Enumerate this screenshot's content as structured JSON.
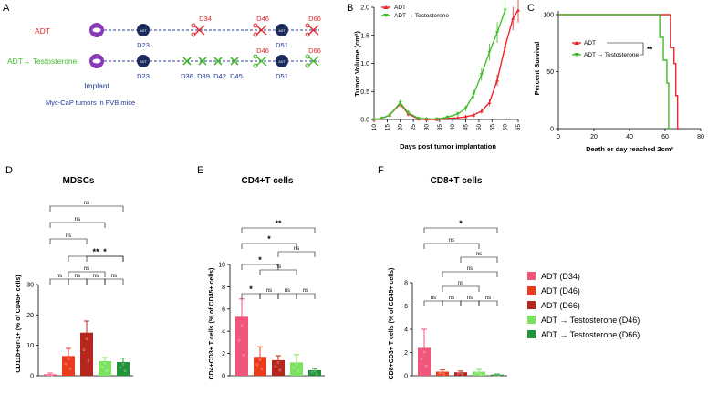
{
  "colors": {
    "adt_red": "#e8262c",
    "adt_testo_green": "#44bb2c",
    "timeline_line": "#2b3f8f",
    "mouse_purple": "#8a3ab9",
    "dot_navy": "#1c2b5e",
    "d34_bar": "#f0567a",
    "d46_bar": "#ec3a1d",
    "d66_bar": "#b5271c",
    "td46_bar": "#7ae25f",
    "td66_bar": "#1f9438",
    "implant_blue": "#1f3a93"
  },
  "panelA": {
    "letter": "A",
    "row1": {
      "label": "ADT",
      "dot1": "ADT",
      "dot1_day": "D23",
      "scissor1": "D34",
      "scissor2": "D46",
      "dot2_day": "D51",
      "scissor3": "D66"
    },
    "row2": {
      "label": "ADT→ Testosterone",
      "dot1": "ADT",
      "dot1_day": "D23",
      "x_days": [
        "D36",
        "D39",
        "D42",
        "D45"
      ],
      "scissor2": "D46",
      "dot2_day": "D51",
      "scissor3": "D66"
    },
    "implant": "Implant",
    "footnote": "Myc-CaP tumors in FVB mice"
  },
  "chart_data": [
    {
      "panel": "B",
      "type": "line",
      "title": "",
      "xlabel": "Days post tumor implantation",
      "ylabel": "Tumor Volume (cm³)",
      "xlim": [
        10,
        65
      ],
      "ylim": [
        0,
        2.0
      ],
      "xticks": [
        "10",
        "15",
        "20",
        "25",
        "30",
        "35",
        "40",
        "45",
        "50",
        "55",
        "60",
        "65"
      ],
      "yticks": [
        "0.0",
        "0.5",
        "1.0",
        "1.5",
        "2.0"
      ],
      "series": [
        {
          "name": "ADT",
          "x": [
            10,
            13,
            16,
            20,
            23,
            27,
            30,
            34,
            38,
            42,
            45,
            48,
            51,
            54,
            57,
            60,
            63,
            65
          ],
          "y": [
            0.0,
            0.02,
            0.08,
            0.28,
            0.1,
            0.01,
            0.0,
            0.0,
            0.02,
            0.03,
            0.05,
            0.08,
            0.15,
            0.3,
            0.7,
            1.3,
            1.8,
            1.95
          ]
        },
        {
          "name": "ADT → Testosterone",
          "x": [
            10,
            13,
            16,
            20,
            23,
            27,
            30,
            34,
            38,
            42,
            45,
            48,
            51,
            54,
            57,
            60
          ],
          "y": [
            0.0,
            0.02,
            0.08,
            0.3,
            0.12,
            0.02,
            0.01,
            0.01,
            0.04,
            0.1,
            0.2,
            0.45,
            0.8,
            1.2,
            1.55,
            1.95
          ]
        }
      ]
    },
    {
      "panel": "C",
      "type": "line",
      "title": "",
      "xlabel": "Death or day reached 2cm³",
      "ylabel": "Percent Survival",
      "xlim": [
        0,
        80
      ],
      "ylim": [
        0,
        100
      ],
      "xticks": [
        "0",
        "20",
        "40",
        "60",
        "80"
      ],
      "yticks": [
        "0",
        "50",
        "100"
      ],
      "significance": "**",
      "series": [
        {
          "name": "ADT",
          "x": [
            0,
            63,
            63,
            65,
            65,
            66,
            66,
            67,
            67,
            68
          ],
          "y": [
            100,
            100,
            71,
            71,
            57,
            57,
            29,
            29,
            0,
            0
          ]
        },
        {
          "name": "ADT → Testosterone",
          "x": [
            0,
            57,
            57,
            59,
            59,
            61,
            61,
            62,
            62,
            63
          ],
          "y": [
            100,
            100,
            80,
            80,
            60,
            60,
            40,
            40,
            0,
            0
          ]
        }
      ]
    },
    {
      "panel": "D",
      "type": "bar",
      "title": "MDSCs",
      "ylabel": "CD11b+Gr-1+ (% of CD45+ cells)",
      "ylim": [
        0,
        30
      ],
      "yticks": [
        "0",
        "10",
        "20",
        "30"
      ],
      "categories": [
        "ADT (D34)",
        "ADT (D46)",
        "ADT (D66)",
        "ADT → Testosterone (D46)",
        "ADT → Testosterone (D66)"
      ],
      "values": [
        0.5,
        6.5,
        14.2,
        4.8,
        4.5
      ],
      "errors": [
        0.4,
        2.5,
        3.8,
        1.2,
        1.3
      ],
      "significance": [
        {
          "pair": [
            0,
            4
          ],
          "label": "ns"
        },
        {
          "pair": [
            0,
            3
          ],
          "label": "ns"
        },
        {
          "pair": [
            0,
            2
          ],
          "label": "ns"
        },
        {
          "pair": [
            1,
            4
          ],
          "label": "**"
        },
        {
          "pair": [
            2,
            4
          ],
          "label": "*"
        },
        {
          "pair": [
            1,
            3
          ],
          "label": "ns"
        },
        {
          "pair": [
            0,
            1
          ],
          "label": "ns"
        },
        {
          "pair": [
            1,
            2
          ],
          "label": "ns"
        },
        {
          "pair": [
            2,
            3
          ],
          "label": "ns"
        },
        {
          "pair": [
            3,
            4
          ],
          "label": "ns"
        }
      ]
    },
    {
      "panel": "E",
      "type": "bar",
      "title": "CD4+T cells",
      "ylabel": "CD4+CD3+ T cells (% of CD45+ cells)",
      "ylim": [
        0,
        10
      ],
      "yticks": [
        "0",
        "2",
        "4",
        "6",
        "8",
        "10"
      ],
      "categories": [
        "ADT (D34)",
        "ADT (D46)",
        "ADT (D66)",
        "ADT → Testosterone (D46)",
        "ADT → Testosterone (D66)"
      ],
      "values": [
        5.3,
        1.7,
        1.4,
        1.2,
        0.5
      ],
      "errors": [
        1.6,
        0.9,
        0.4,
        0.7,
        0.15
      ],
      "significance": [
        {
          "pair": [
            0,
            4
          ],
          "label": "**"
        },
        {
          "pair": [
            0,
            3
          ],
          "label": "*"
        },
        {
          "pair": [
            2,
            4
          ],
          "label": "ns"
        },
        {
          "pair": [
            0,
            2
          ],
          "label": "*"
        },
        {
          "pair": [
            1,
            3
          ],
          "label": "ns"
        },
        {
          "pair": [
            0,
            1
          ],
          "label": "*"
        },
        {
          "pair": [
            1,
            2
          ],
          "label": "ns"
        },
        {
          "pair": [
            2,
            3
          ],
          "label": "ns"
        },
        {
          "pair": [
            3,
            4
          ],
          "label": "ns"
        }
      ]
    },
    {
      "panel": "F",
      "type": "bar",
      "title": "CD8+T cells",
      "ylabel": "CD8+CD3+ T cells (% of CD45+ cells)",
      "ylim": [
        0,
        8
      ],
      "yticks": [
        "0",
        "2",
        "4",
        "6",
        "8"
      ],
      "categories": [
        "ADT (D34)",
        "ADT (D46)",
        "ADT (D66)",
        "ADT → Testosterone (D46)",
        "ADT → Testosterone (D66)"
      ],
      "values": [
        2.4,
        0.35,
        0.3,
        0.35,
        0.1
      ],
      "errors": [
        1.6,
        0.15,
        0.1,
        0.2,
        0.05
      ],
      "significance": [
        {
          "pair": [
            0,
            4
          ],
          "label": "*"
        },
        {
          "pair": [
            0,
            3
          ],
          "label": "ns"
        },
        {
          "pair": [
            2,
            4
          ],
          "label": "ns"
        },
        {
          "pair": [
            1,
            4
          ],
          "label": "ns"
        },
        {
          "pair": [
            1,
            3
          ],
          "label": "ns"
        },
        {
          "pair": [
            0,
            1
          ],
          "label": "ns"
        },
        {
          "pair": [
            1,
            2
          ],
          "label": "ns"
        },
        {
          "pair": [
            2,
            3
          ],
          "label": "ns"
        },
        {
          "pair": [
            3,
            4
          ],
          "label": "ns"
        }
      ]
    }
  ],
  "legend": {
    "items": [
      "ADT (D34)",
      "ADT (D46)",
      "ADT (D66)",
      "ADT → Testosterone  (D46)",
      "ADT → Testosterone  (D66)"
    ]
  },
  "panel_letters": [
    "B",
    "C",
    "D",
    "E",
    "F"
  ]
}
